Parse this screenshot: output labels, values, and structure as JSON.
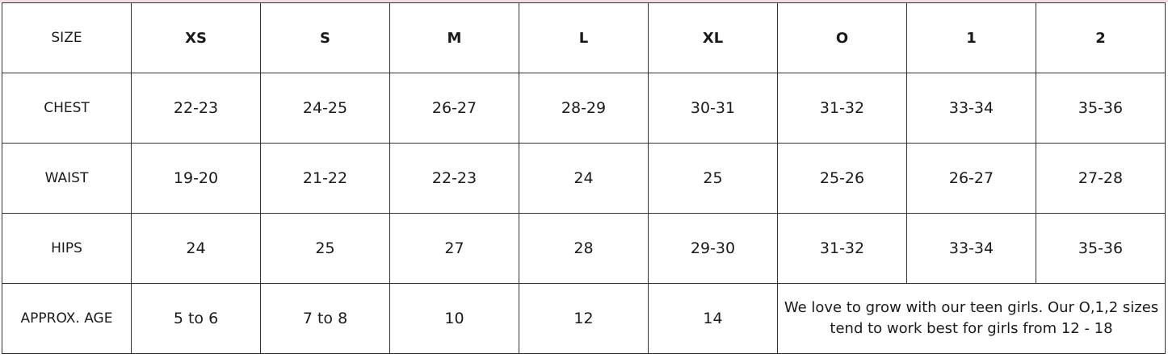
{
  "colors": {
    "top_strip": "#f1dde6",
    "border": "#333333",
    "text": "#1a1a1a"
  },
  "table": {
    "header": [
      "SIZE",
      "XS",
      "S",
      "M",
      "L",
      "XL",
      "O",
      "1",
      "2"
    ],
    "rows": [
      [
        "CHEST",
        "22-23",
        "24-25",
        "26-27",
        "28-29",
        "30-31",
        "31-32",
        "33-34",
        "35-36"
      ],
      [
        "WAIST",
        "19-20",
        "21-22",
        "22-23",
        "24",
        "25",
        "25-26",
        "26-27",
        "27-28"
      ],
      [
        "HIPS",
        "24",
        "25",
        "27",
        "28",
        "29-30",
        "31-32",
        "33-34",
        "35-36"
      ]
    ],
    "age_row": {
      "label": "APPROX. AGE",
      "values": [
        "5 to 6",
        "7 to 8",
        "10",
        "12",
        "14"
      ],
      "note": "We love to grow with our teen girls. Our O,1,2 sizes tend to work best for girls from 12 - 18"
    }
  }
}
